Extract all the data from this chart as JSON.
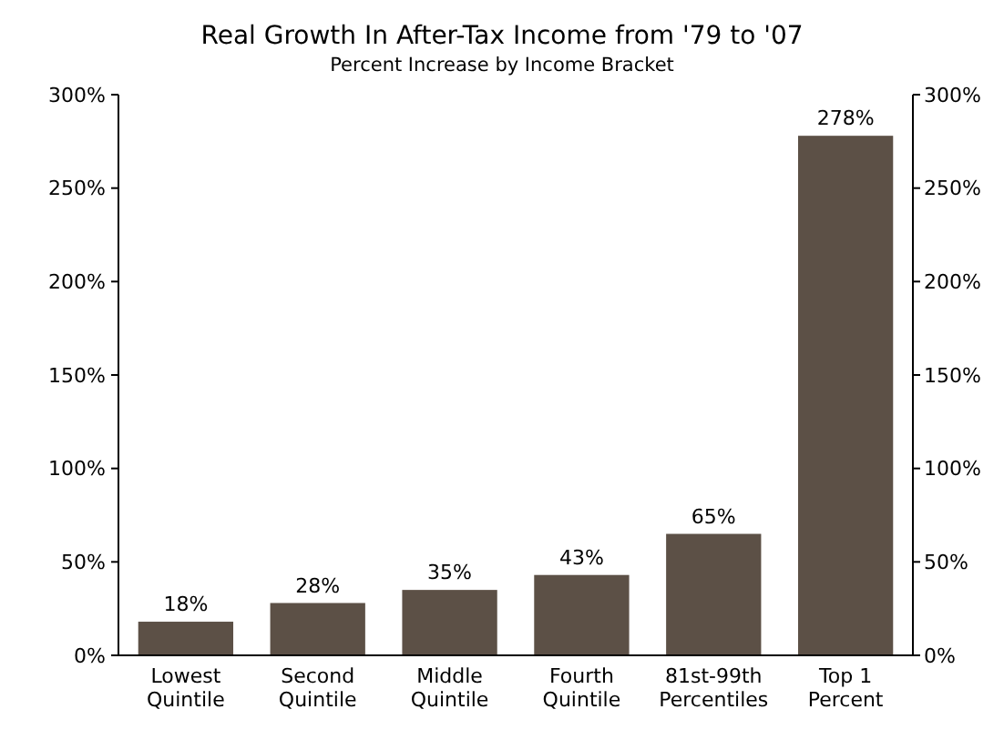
{
  "chart_data": {
    "type": "bar",
    "title": "Real Growth In After-Tax Income from '79 to '07",
    "subtitle": "Percent Increase by Income Bracket",
    "categories": [
      "Lowest\nQuintile",
      "Second\nQuintile",
      "Middle\nQuintile",
      "Fourth\nQuintile",
      "81st-99th\nPercentiles",
      "Top 1\nPercent"
    ],
    "values": [
      18,
      28,
      35,
      43,
      65,
      278
    ],
    "value_labels": [
      "18%",
      "28%",
      "35%",
      "43%",
      "65%",
      "278%"
    ],
    "color": "#5c5046",
    "ylim": [
      0,
      300
    ],
    "yticks": [
      {
        "value": 0,
        "label": "0%"
      },
      {
        "value": 50,
        "label": "50%"
      },
      {
        "value": 100,
        "label": "100%"
      },
      {
        "value": 150,
        "label": "150%"
      },
      {
        "value": 200,
        "label": "200%"
      },
      {
        "value": 250,
        "label": "250%"
      },
      {
        "value": 300,
        "label": "300%"
      }
    ],
    "y2lim": [
      0,
      300
    ],
    "y2ticks": [
      {
        "value": 0,
        "label": "0%"
      },
      {
        "value": 50,
        "label": "50%"
      },
      {
        "value": 100,
        "label": "100%"
      },
      {
        "value": 150,
        "label": "150%"
      },
      {
        "value": 200,
        "label": "200%"
      },
      {
        "value": 250,
        "label": "250%"
      },
      {
        "value": 300,
        "label": "300%"
      }
    ],
    "grid": false
  }
}
